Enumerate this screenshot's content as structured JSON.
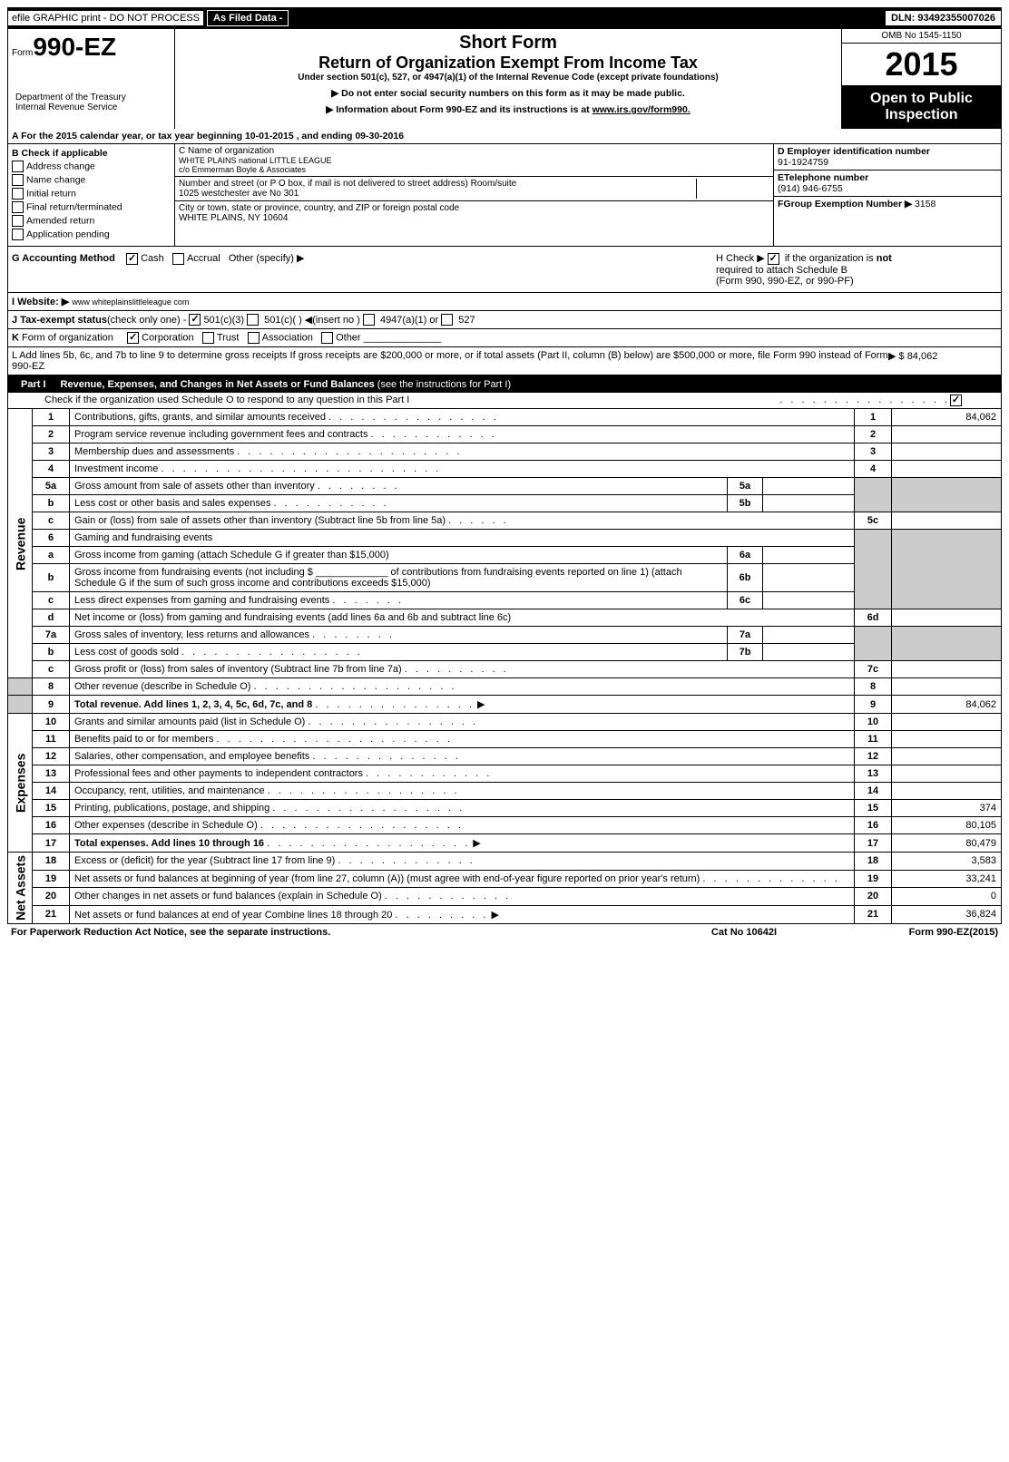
{
  "topbar": {
    "efile": "efile GRAPHIC print - DO NOT PROCESS",
    "asfiled": "As Filed Data -",
    "dln": "DLN: 93492355007026"
  },
  "header": {
    "form_prefix": "Form",
    "form_number": "990-EZ",
    "dept1": "Department of the Treasury",
    "dept2": "Internal Revenue Service",
    "short": "Short Form",
    "title": "Return of Organization Exempt From Income Tax",
    "sub": "Under section 501(c), 527, or 4947(a)(1) of the Internal Revenue Code (except private foundations)",
    "info1": "▶ Do not enter social security numbers on this form as it may be made public.",
    "info2": "▶ Information about Form 990-EZ and its instructions is at ",
    "info2_link": "www.irs.gov/form990.",
    "omb": "OMB No 1545-1150",
    "year": "2015",
    "open1": "Open to Public",
    "open2": "Inspection"
  },
  "rowA": "A  For the 2015 calendar year, or tax year beginning 10-01-2015            , and ending 09-30-2016",
  "colB": {
    "title": "B  Check if applicable",
    "items": [
      "Address change",
      "Name change",
      "Initial return",
      "Final return/terminated",
      "Amended return",
      "Application pending"
    ]
  },
  "colC": {
    "name_label": "C Name of organization",
    "name": "WHITE PLAINS national LITTLE LEAGUE",
    "care": "c/o Emmerman Boyle & Associates",
    "addr_label": "Number and street (or P O box, if mail is not delivered to street address) Room/suite",
    "addr": "1025 westchester ave No 301",
    "city_label": "City or town, state or province, country, and ZIP or foreign postal code",
    "city": "WHITE PLAINS, NY 10604"
  },
  "colD": {
    "ein_label": "D Employer identification number",
    "ein": "91-1924759",
    "tel_label": "ETelephone number",
    "tel": "(914) 946-6755",
    "grp_label": "FGroup Exemption Number  ▶",
    "grp": "3158"
  },
  "rowG": {
    "label": "G Accounting Method",
    "cash": "Cash",
    "accrual": "Accrual",
    "other": "Other (specify) ▶",
    "h1": "H   Check ▶",
    "h2": "if the organization is",
    "h2b": "not",
    "h3": "required to attach Schedule B",
    "h4": "(Form 990, 990-EZ, or 990-PF)"
  },
  "rowI": {
    "label": "I Website: ▶",
    "val": "www whiteplainslittleleague com"
  },
  "rowJ": "J Tax-exempt status(check only one) -       501(c)(3)        501(c)(  ) ◀(insert no )       4947(a)(1) or       527",
  "rowK": "K Form of organization         Corporation       Trust       Association       Other",
  "rowL": {
    "text": "L Add lines 5b, 6c, and 7b to line 9 to determine gross receipts  If gross receipts are $200,000 or more, or if total assets (Part II, column (B) below) are $500,000 or more, file Form 990 instead of Form 990-EZ",
    "amt": "▶ $ 84,062"
  },
  "part1": {
    "label": "Part I",
    "title": "Revenue, Expenses, and Changes in Net Assets or Fund Balances",
    "sub": "(see the instructions for Part I)",
    "check": "Check if the organization used Schedule O to respond to any question in this Part I"
  },
  "vert": {
    "rev": "Revenue",
    "exp": "Expenses",
    "net": "Net Assets"
  },
  "lines": {
    "l1": {
      "n": "1",
      "t": "Contributions, gifts, grants, and similar amounts received",
      "v": "84,062"
    },
    "l2": {
      "n": "2",
      "t": "Program service revenue including government fees and contracts",
      "v": ""
    },
    "l3": {
      "n": "3",
      "t": "Membership dues and assessments",
      "v": ""
    },
    "l4": {
      "n": "4",
      "t": "Investment income",
      "v": ""
    },
    "l5a": {
      "n": "5a",
      "t": "Gross amount from sale of assets other than inventory",
      "m": "5a"
    },
    "l5b": {
      "n": "b",
      "t": "Less cost or other basis and sales expenses",
      "m": "5b"
    },
    "l5c": {
      "n": "c",
      "t": "Gain or (loss) from sale of assets other than inventory (Subtract line 5b from line 5a)",
      "v": "",
      "r": "5c"
    },
    "l6": {
      "n": "6",
      "t": "Gaming and fundraising events"
    },
    "l6a": {
      "n": "a",
      "t": "Gross income from gaming (attach Schedule G if greater than $15,000)",
      "m": "6a"
    },
    "l6b": {
      "n": "b",
      "t": "Gross income from fundraising events (not including $ _____________ of contributions from fundraising events reported on line 1) (attach Schedule G if the sum of such gross income and contributions exceeds $15,000)",
      "m": "6b"
    },
    "l6c": {
      "n": "c",
      "t": "Less direct expenses from gaming and fundraising events",
      "m": "6c"
    },
    "l6d": {
      "n": "d",
      "t": "Net income or (loss) from gaming and fundraising events (add lines 6a and 6b and subtract line 6c)",
      "v": "",
      "r": "6d"
    },
    "l7a": {
      "n": "7a",
      "t": "Gross sales of inventory, less returns and allowances",
      "m": "7a"
    },
    "l7b": {
      "n": "b",
      "t": "Less cost of goods sold",
      "m": "7b"
    },
    "l7c": {
      "n": "c",
      "t": "Gross profit or (loss) from sales of inventory (Subtract line 7b from line 7a)",
      "v": "",
      "r": "7c"
    },
    "l8": {
      "n": "8",
      "t": "Other revenue (describe in Schedule O)",
      "v": "",
      "r": "8"
    },
    "l9": {
      "n": "9",
      "t": "Total revenue. Add lines 1, 2, 3, 4, 5c, 6d, 7c, and 8",
      "v": "84,062",
      "r": "9",
      "bold": true,
      "arrow": true
    },
    "l10": {
      "n": "10",
      "t": "Grants and similar amounts paid (list in Schedule O)",
      "v": "",
      "r": "10"
    },
    "l11": {
      "n": "11",
      "t": "Benefits paid to or for members",
      "v": "",
      "r": "11"
    },
    "l12": {
      "n": "12",
      "t": "Salaries, other compensation, and employee benefits",
      "v": "",
      "r": "12"
    },
    "l13": {
      "n": "13",
      "t": "Professional fees and other payments to independent contractors",
      "v": "",
      "r": "13"
    },
    "l14": {
      "n": "14",
      "t": "Occupancy, rent, utilities, and maintenance",
      "v": "",
      "r": "14"
    },
    "l15": {
      "n": "15",
      "t": "Printing, publications, postage, and shipping",
      "v": "374",
      "r": "15"
    },
    "l16": {
      "n": "16",
      "t": "Other expenses (describe in Schedule O)",
      "v": "80,105",
      "r": "16"
    },
    "l17": {
      "n": "17",
      "t": "Total expenses. Add lines 10 through 16",
      "v": "80,479",
      "r": "17",
      "bold": true,
      "arrow": true
    },
    "l18": {
      "n": "18",
      "t": "Excess or (deficit) for the year (Subtract line 17 from line 9)",
      "v": "3,583",
      "r": "18"
    },
    "l19": {
      "n": "19",
      "t": "Net assets or fund balances at beginning of year (from line 27, column (A)) (must agree with end-of-year figure reported on prior year's return)",
      "v": "33,241",
      "r": "19"
    },
    "l20": {
      "n": "20",
      "t": "Other changes in net assets or fund balances (explain in Schedule O)",
      "v": "0",
      "r": "20"
    },
    "l21": {
      "n": "21",
      "t": "Net assets or fund balances at end of year  Combine lines 18 through 20",
      "v": "36,824",
      "r": "21",
      "arrow": true
    }
  },
  "footer": {
    "left": "For Paperwork Reduction Act Notice, see the separate instructions.",
    "mid": "Cat No 10642I",
    "right": "Form 990-EZ (2015)"
  }
}
